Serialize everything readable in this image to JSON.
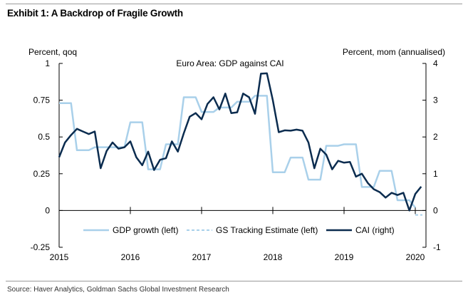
{
  "exhibit": {
    "title": "Exhibit 1: A Backdrop of Fragile Growth",
    "source": "Source: Haver Analytics, Goldman Sachs Global Investment Research"
  },
  "colors": {
    "gdp": "#a9d0ea",
    "cai": "#0b2c4f",
    "axis": "#000000"
  },
  "chart_data": {
    "type": "line",
    "title": "Euro Area: GDP against CAI",
    "ylabel_left": "Percent, qoq",
    "ylabel_right": "Percent, mom (annualised)",
    "xlim": [
      2015,
      2020.15
    ],
    "ylim_left": [
      -0.25,
      1
    ],
    "ylim_right": [
      -1,
      4
    ],
    "x_ticks": [
      2015,
      2016,
      2017,
      2018,
      2019,
      2020
    ],
    "x_tick_labels": [
      "2015",
      "2016",
      "2017",
      "2018",
      "2019",
      "2020"
    ],
    "y_left_ticks": [
      -0.25,
      0,
      0.25,
      0.5,
      0.75,
      1
    ],
    "y_left_tick_labels": [
      "-0.25",
      "0",
      "0.25",
      "0.5",
      "0.75",
      "1"
    ],
    "y_right_ticks": [
      -1,
      0,
      1,
      2,
      3,
      4
    ],
    "y_right_tick_labels": [
      "-1",
      "0",
      "1",
      "2",
      "3",
      "4"
    ],
    "legend_position": "bottom",
    "series": [
      {
        "name": "GDP growth (left)",
        "axis": "left",
        "style": "solid",
        "x": [
          2015.0,
          2015.167,
          2015.25,
          2015.417,
          2015.5,
          2015.667,
          2015.75,
          2015.917,
          2016.0,
          2016.167,
          2016.25,
          2016.417,
          2016.5,
          2016.667,
          2016.75,
          2016.917,
          2017.0,
          2017.167,
          2017.25,
          2017.417,
          2017.5,
          2017.667,
          2017.75,
          2017.917,
          2018.0,
          2018.167,
          2018.25,
          2018.417,
          2018.5,
          2018.667,
          2018.75,
          2018.917,
          2019.0,
          2019.167,
          2019.25,
          2019.417,
          2019.5,
          2019.667,
          2019.75,
          2019.917,
          2020.0
        ],
        "y": [
          0.73,
          0.73,
          0.41,
          0.41,
          0.43,
          0.43,
          0.43,
          0.43,
          0.6,
          0.6,
          0.28,
          0.28,
          0.45,
          0.45,
          0.77,
          0.77,
          0.67,
          0.67,
          0.7,
          0.7,
          0.74,
          0.74,
          0.78,
          0.78,
          0.26,
          0.26,
          0.36,
          0.36,
          0.21,
          0.21,
          0.44,
          0.44,
          0.45,
          0.45,
          0.16,
          0.16,
          0.27,
          0.27,
          0.07,
          0.07,
          0.02
        ]
      },
      {
        "name": "GS Tracking Estimate (left)",
        "axis": "left",
        "style": "dashed",
        "x": [
          2020.0,
          2020.1
        ],
        "y": [
          -0.03,
          -0.03
        ]
      },
      {
        "name": "CAI (right)",
        "axis": "right",
        "style": "solid",
        "x": [
          2015.0,
          2015.083,
          2015.167,
          2015.25,
          2015.333,
          2015.417,
          2015.5,
          2015.583,
          2015.667,
          2015.75,
          2015.833,
          2015.917,
          2016.0,
          2016.083,
          2016.167,
          2016.25,
          2016.333,
          2016.417,
          2016.5,
          2016.583,
          2016.667,
          2016.75,
          2016.833,
          2016.917,
          2017.0,
          2017.083,
          2017.167,
          2017.25,
          2017.333,
          2017.417,
          2017.5,
          2017.583,
          2017.667,
          2017.75,
          2017.833,
          2017.917,
          2018.0,
          2018.083,
          2018.167,
          2018.25,
          2018.333,
          2018.417,
          2018.5,
          2018.583,
          2018.667,
          2018.75,
          2018.833,
          2018.917,
          2019.0,
          2019.083,
          2019.167,
          2019.25,
          2019.333,
          2019.417,
          2019.5,
          2019.583,
          2019.667,
          2019.75,
          2019.833,
          2019.917,
          2020.0,
          2020.083
        ],
        "y": [
          1.45,
          1.85,
          2.05,
          2.22,
          2.15,
          2.08,
          2.15,
          1.15,
          1.62,
          1.85,
          1.68,
          1.72,
          1.88,
          1.45,
          1.23,
          1.6,
          1.1,
          1.38,
          1.42,
          1.88,
          1.6,
          2.1,
          2.55,
          2.65,
          2.48,
          2.9,
          3.08,
          2.75,
          3.18,
          2.65,
          2.67,
          3.18,
          3.08,
          2.63,
          3.72,
          3.73,
          3.0,
          2.13,
          2.18,
          2.17,
          2.2,
          2.17,
          1.85,
          1.15,
          1.68,
          1.52,
          1.12,
          1.35,
          1.3,
          1.32,
          0.92,
          1.0,
          0.75,
          0.58,
          0.5,
          0.35,
          0.48,
          0.42,
          0.48,
          0.0,
          0.45,
          0.65
        ]
      }
    ]
  }
}
